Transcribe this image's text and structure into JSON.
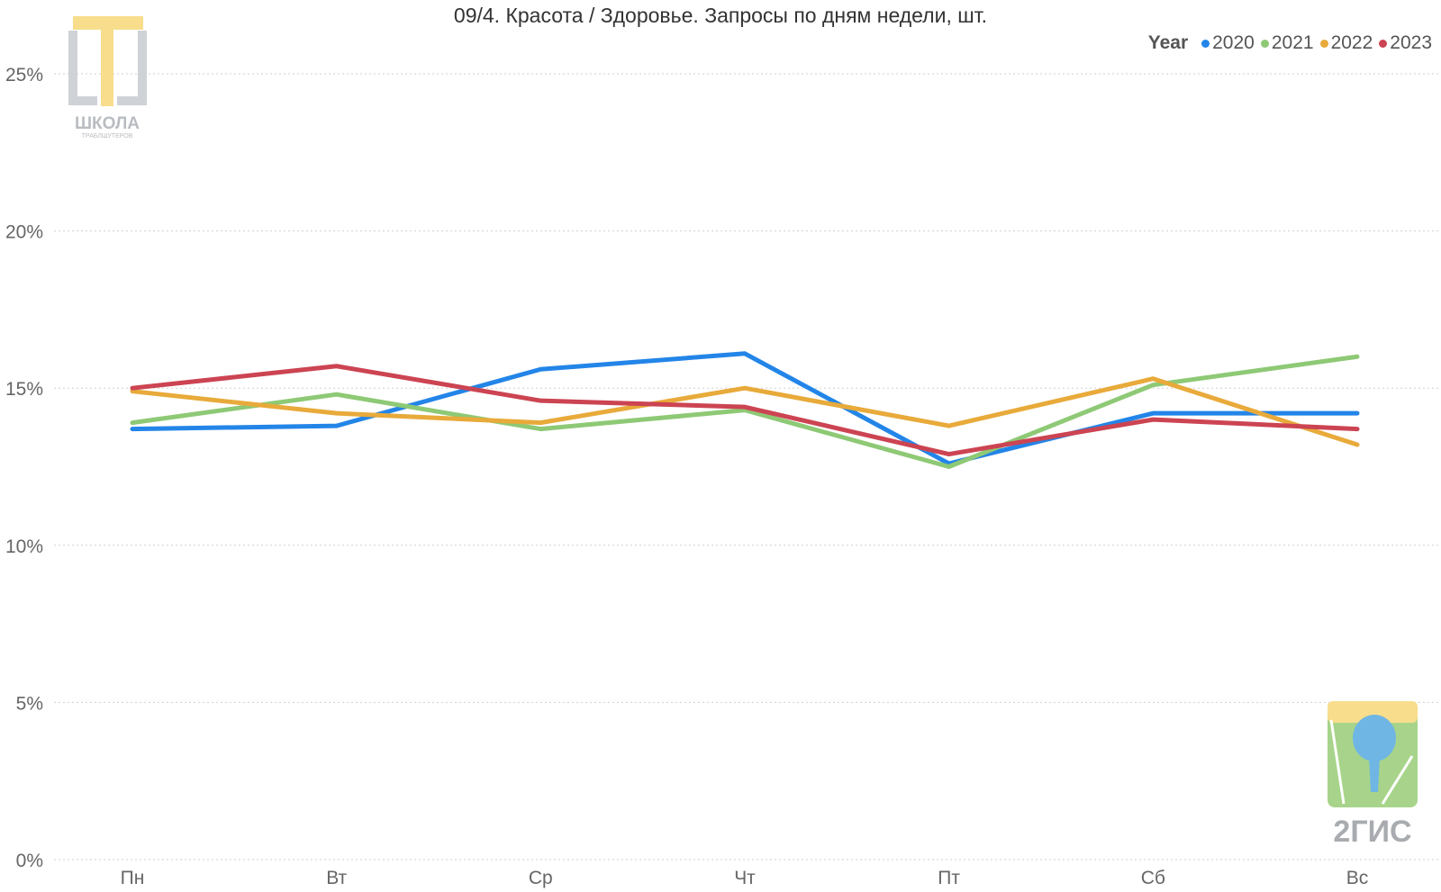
{
  "title": "09/4. Красота / Здоровье. Запросы по дням недели, шт.",
  "legend": {
    "title": "Year"
  },
  "logos": {
    "school": {
      "line1": "ШКОЛА",
      "line2": "ТРАБЛШУТЕРОВ"
    },
    "gis": {
      "text": "2ГИС"
    }
  },
  "chart_data": {
    "type": "line",
    "categories": [
      "Пн",
      "Вт",
      "Ср",
      "Чт",
      "Пт",
      "Сб",
      "Вс"
    ],
    "ylim": [
      0,
      0.25
    ],
    "yticks": [
      "0%",
      "5%",
      "10%",
      "15%",
      "20%",
      "25%"
    ],
    "grid": true,
    "legend_position": "top-right",
    "series": [
      {
        "name": "2020",
        "color": "#2385e8",
        "values": [
          0.137,
          0.138,
          0.156,
          0.161,
          0.126,
          0.142,
          0.142
        ]
      },
      {
        "name": "2021",
        "color": "#8ec975",
        "values": [
          0.139,
          0.148,
          0.137,
          0.143,
          0.125,
          0.151,
          0.16
        ]
      },
      {
        "name": "2022",
        "color": "#e8aa3a",
        "values": [
          0.149,
          0.142,
          0.139,
          0.15,
          0.138,
          0.153,
          0.132
        ]
      },
      {
        "name": "2023",
        "color": "#cc4452",
        "values": [
          0.15,
          0.157,
          0.146,
          0.144,
          0.129,
          0.14,
          0.137
        ]
      }
    ]
  }
}
